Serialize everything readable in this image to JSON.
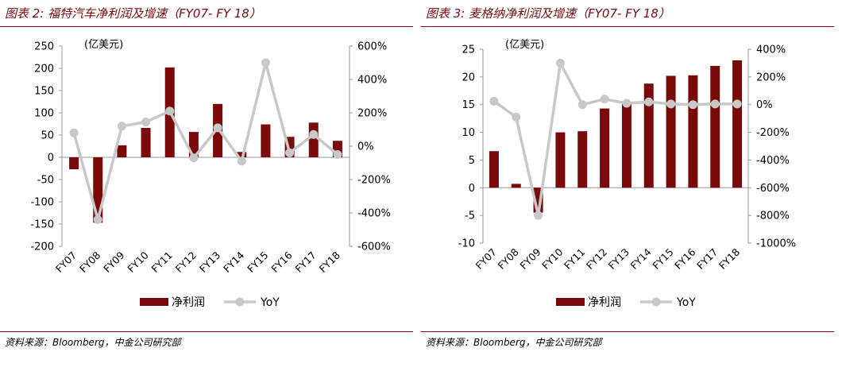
{
  "panels": [
    {
      "title": "图表 2:  福特汽车净利润及增速（FY07- FY 18）",
      "source": "资料来源：Bloomberg，中金公司研究部",
      "unit_label": "(亿美元)"
    },
    {
      "title": "图表 3:  麦格纳净利润及增速（FY07- FY 18）",
      "source": "资料来源：Bloomberg，中金公司研究部",
      "unit_label": "(亿美元)"
    }
  ],
  "colors": {
    "bar": "#7a0a0a",
    "line": "#c8c8c8",
    "rule": "#7a0a0a"
  },
  "chart_data": [
    {
      "type": "bar",
      "categories": [
        "FY07",
        "FY08",
        "FY09",
        "FY10",
        "FY11",
        "FY12",
        "FY13",
        "FY14",
        "FY15",
        "FY16",
        "FY17",
        "FY18"
      ],
      "series": [
        {
          "name": "净利润",
          "type": "bar",
          "axis": "left",
          "values": [
            -27,
            -147,
            27,
            66,
            202,
            57,
            120,
            12,
            74,
            46,
            78,
            37
          ]
        },
        {
          "name": "YoY",
          "type": "line",
          "axis": "right",
          "values": [
            80,
            -440,
            120,
            145,
            210,
            -70,
            110,
            -90,
            500,
            -40,
            70,
            -50
          ]
        }
      ],
      "ylim": [
        -200,
        250
      ],
      "yticks": [
        250,
        200,
        150,
        100,
        50,
        0,
        -50,
        -100,
        -150,
        -200
      ],
      "ytick_labels": [
        "250",
        "200",
        "150",
        "100",
        "50",
        "0",
        "-50",
        "-100",
        "-150",
        "-200"
      ],
      "y2lim": [
        -600,
        600
      ],
      "y2ticks": [
        600,
        400,
        200,
        0,
        -200,
        -400,
        -600
      ],
      "y2tick_labels": [
        "600%",
        "400%",
        "200%",
        "0%",
        "-200%",
        "-400%",
        "-600%"
      ],
      "legend": {
        "placement": "bottom",
        "items": [
          "净利润",
          "YoY"
        ]
      },
      "grid": false
    },
    {
      "type": "bar",
      "categories": [
        "FY07",
        "FY08",
        "FY09",
        "FY10",
        "FY11",
        "FY12",
        "FY13",
        "FY14",
        "FY15",
        "FY16",
        "FY17",
        "FY18"
      ],
      "series": [
        {
          "name": "净利润",
          "type": "bar",
          "axis": "left",
          "values": [
            6.6,
            0.7,
            -4.5,
            10,
            10.2,
            14.3,
            15.5,
            18.8,
            20.2,
            20.3,
            22,
            23
          ]
        },
        {
          "name": "YoY",
          "type": "line",
          "axis": "right",
          "values": [
            25,
            -90,
            -800,
            300,
            0,
            40,
            10,
            20,
            5,
            0,
            5,
            5
          ]
        }
      ],
      "ylim": [
        -10,
        25
      ],
      "yticks": [
        25,
        20,
        15,
        10,
        5,
        0,
        -5,
        -10
      ],
      "ytick_labels": [
        "25",
        "20",
        "15",
        "10",
        "5",
        "0",
        "-5",
        "-10"
      ],
      "y2lim": [
        -1000,
        400
      ],
      "y2ticks": [
        400,
        200,
        0,
        -200,
        -400,
        -600,
        -800,
        -1000
      ],
      "y2tick_labels": [
        "400%",
        "200%",
        "0%",
        "-200%",
        "-400%",
        "-600%",
        "-800%",
        "-1000%"
      ],
      "legend": {
        "placement": "bottom",
        "items": [
          "净利润",
          "YoY"
        ]
      },
      "grid": false
    }
  ]
}
